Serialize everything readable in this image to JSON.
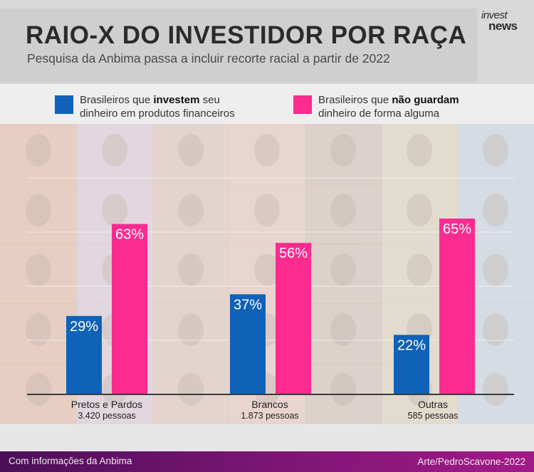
{
  "header": {
    "title": "RAIO-X DO INVESTIDOR POR RAÇA",
    "subtitle": "Pesquisa da Anbima passa a incluir recorte racial a partir de 2022",
    "logo_line1": "invest",
    "logo_line2": "news"
  },
  "legend": {
    "items": [
      {
        "text_pre": "Brasileiros que ",
        "text_bold": "investem",
        "text_post": " seu",
        "line2": "dinheiro em produtos financeiros",
        "color": "#0f62b8"
      },
      {
        "text_pre": "Brasileiros que ",
        "text_bold": "não guardam",
        "text_post": "",
        "line2": "dinheiro de forma alguma",
        "color": "#fb2b8f"
      }
    ]
  },
  "chart_data": {
    "type": "bar",
    "categories": [
      "Pretos e Pardos",
      "Brancos",
      "Outras"
    ],
    "category_sublabels": [
      "3.420 pessoas",
      "1.873 pessoas",
      "585 pessoas"
    ],
    "series": [
      {
        "name": "Brasileiros que investem seu dinheiro em produtos financeiros",
        "values": [
          29,
          37,
          22
        ],
        "color": "#0f62b8"
      },
      {
        "name": "Brasileiros que não guardam dinheiro de forma alguma",
        "values": [
          63,
          56,
          65
        ],
        "color": "#fb2b8f"
      }
    ],
    "value_labels": [
      [
        "29%",
        "37%",
        "22%"
      ],
      [
        "63%",
        "56%",
        "65%"
      ]
    ],
    "ylim": [
      0,
      100
    ],
    "grid": true,
    "legend_position": "top"
  },
  "footer": {
    "source": "Com informações da Anbima",
    "credit": "Arte/PedroScavone-2022"
  }
}
